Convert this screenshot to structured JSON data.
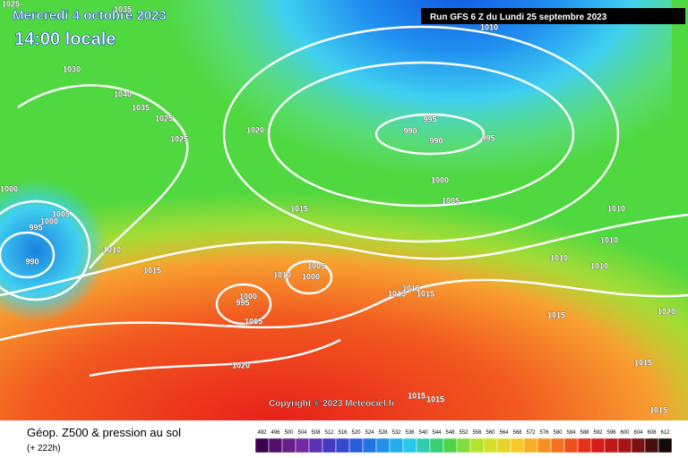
{
  "header": {
    "valid_date": "Mercredi 4 octobre 2023",
    "local_time": "14:00 locale",
    "run": "Run GFS 6 Z du Lundi 25 septembre 2023",
    "copyright": "Copyright © 2023 Meteociel.fr"
  },
  "legend": {
    "title": "Géop. Z500 & pression au sol",
    "lead_time": "(+ 222h)",
    "scale": [
      492,
      496,
      500,
      504,
      508,
      512,
      516,
      520,
      524,
      528,
      532,
      536,
      540,
      544,
      548,
      552,
      556,
      560,
      564,
      568,
      572,
      576,
      580,
      584,
      588,
      592,
      596,
      600,
      604,
      608,
      612
    ]
  },
  "isobar_labels": [
    1035,
    1025,
    1030,
    1040,
    1035,
    1025,
    1025,
    1020,
    1000,
    1005,
    995,
    1000,
    990,
    1010,
    1015,
    1015,
    1010,
    1005,
    1000,
    1000,
    995,
    1005,
    1020,
    995,
    990,
    990,
    995,
    1000,
    1005,
    1010,
    1015,
    1015,
    1015,
    1010,
    1010,
    1010,
    1010,
    1015,
    1020,
    1015,
    1015,
    1015,
    1015
  ]
}
